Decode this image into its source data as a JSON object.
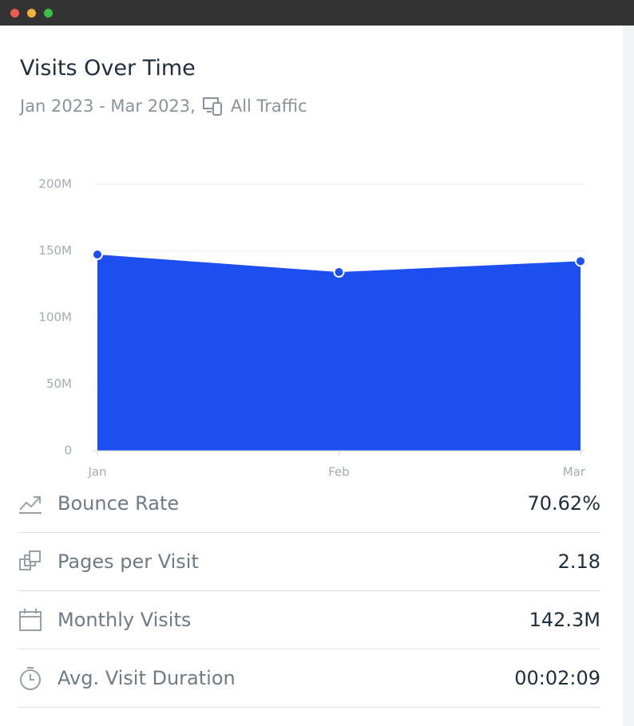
{
  "header": {
    "title": "Visits Over Time",
    "date_range": "Jan 2023 - Mar 2023,",
    "traffic": "All Traffic"
  },
  "chart_data": {
    "type": "area",
    "categories": [
      "Jan",
      "Feb",
      "Mar"
    ],
    "values": [
      147300000,
      134100000,
      142300000
    ],
    "color": "#1c4ef2",
    "ylim": [
      0,
      200000000
    ],
    "yticks": [
      0,
      {
        "value": 50000000,
        "label": "50M"
      },
      {
        "value": 100000000,
        "label": "100M"
      },
      {
        "value": 150000000,
        "label": "150M"
      },
      {
        "value": 200000000,
        "label": "200M"
      }
    ],
    "grid": true
  },
  "metrics": [
    {
      "label": "Bounce Rate",
      "value": "70.62%"
    },
    {
      "label": "Pages per Visit",
      "value": "2.18"
    },
    {
      "label": "Monthly Visits",
      "value": "142.3M"
    },
    {
      "label": "Avg. Visit Duration",
      "value": "00:02:09"
    }
  ]
}
